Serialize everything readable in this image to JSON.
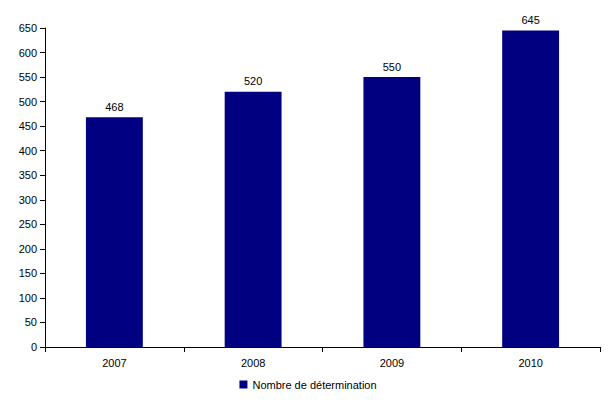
{
  "chart_data": {
    "type": "bar",
    "categories": [
      "2007",
      "2008",
      "2009",
      "2010"
    ],
    "series": [
      {
        "name": "Nombre de détermination",
        "color": "#000080",
        "values": [
          468,
          520,
          550,
          645
        ]
      }
    ],
    "ylim": [
      0,
      650
    ],
    "yticks": [
      0,
      50,
      100,
      150,
      200,
      250,
      300,
      350,
      400,
      450,
      500,
      550,
      600,
      650
    ],
    "grid": false,
    "legend": "bottom",
    "data_labels": true
  }
}
